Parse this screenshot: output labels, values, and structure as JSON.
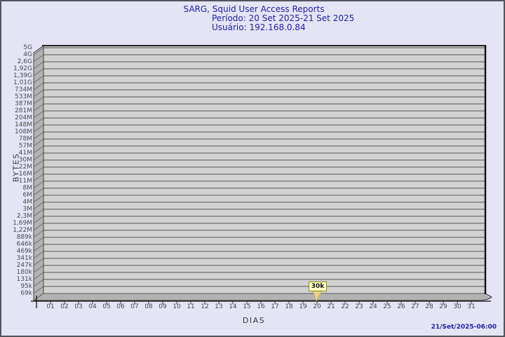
{
  "title": {
    "line1": "SARG, Squid User Access Reports",
    "line2": "Período: 20 Set 2025-21 Set 2025",
    "line3": "Usuário: 192.168.0.84"
  },
  "footer": {
    "timestamp": "21/Set/2025-06:00"
  },
  "chart_data": {
    "type": "bar",
    "title": "SARG, Squid User Access Reports",
    "subtitle_period": "Período: 20 Set 2025-21 Set 2025",
    "subtitle_user": "Usuário: 192.168.0.84",
    "xlabel": "DIAS",
    "ylabel": "BYTES",
    "x_ticks": [
      "01",
      "02",
      "03",
      "04",
      "05",
      "06",
      "07",
      "08",
      "09",
      "10",
      "11",
      "12",
      "13",
      "14",
      "15",
      "16",
      "17",
      "18",
      "19",
      "20",
      "21",
      "22",
      "23",
      "24",
      "25",
      "26",
      "27",
      "28",
      "29",
      "30",
      "31"
    ],
    "y_ticks": [
      "5G",
      "4G",
      "2,6G",
      "1,92G",
      "1,39G",
      "1,01G",
      "734M",
      "533M",
      "387M",
      "281M",
      "204M",
      "148M",
      "108M",
      "78M",
      "57M",
      "41M",
      "30M",
      "22M",
      "16M",
      "11M",
      "8M",
      "6M",
      "4M",
      "3M",
      "2,3M",
      "1,69M",
      "1,22M",
      "889k",
      "646k",
      "469k",
      "341k",
      "247k",
      "180k",
      "131k",
      "95k",
      "69k"
    ],
    "y_scale": "log",
    "grid": "horizontal-only",
    "legend": "none",
    "values": [
      null,
      null,
      null,
      null,
      null,
      null,
      null,
      null,
      null,
      null,
      null,
      null,
      null,
      null,
      null,
      null,
      null,
      null,
      null,
      30000,
      null,
      null,
      null,
      null,
      null,
      null,
      null,
      null,
      null,
      null,
      null
    ],
    "point_labels": [
      null,
      null,
      null,
      null,
      null,
      null,
      null,
      null,
      null,
      null,
      null,
      null,
      null,
      null,
      null,
      null,
      null,
      null,
      null,
      "30k",
      null,
      null,
      null,
      null,
      null,
      null,
      null,
      null,
      null,
      null,
      null
    ],
    "annotation": {
      "day": "20",
      "label": "30k"
    },
    "colors": {
      "background": "#e4e4f5",
      "plot_fill": "#d2d2d2",
      "wall_fill": "#b2b2b2",
      "gridline": "#6f6f6f",
      "title_text": "#2121a3",
      "axis_text": "#4a4a4a",
      "marker_fill": "#ffffc6",
      "marker_border": "#8a8a00",
      "marker_wedge": "#e8d584"
    }
  }
}
